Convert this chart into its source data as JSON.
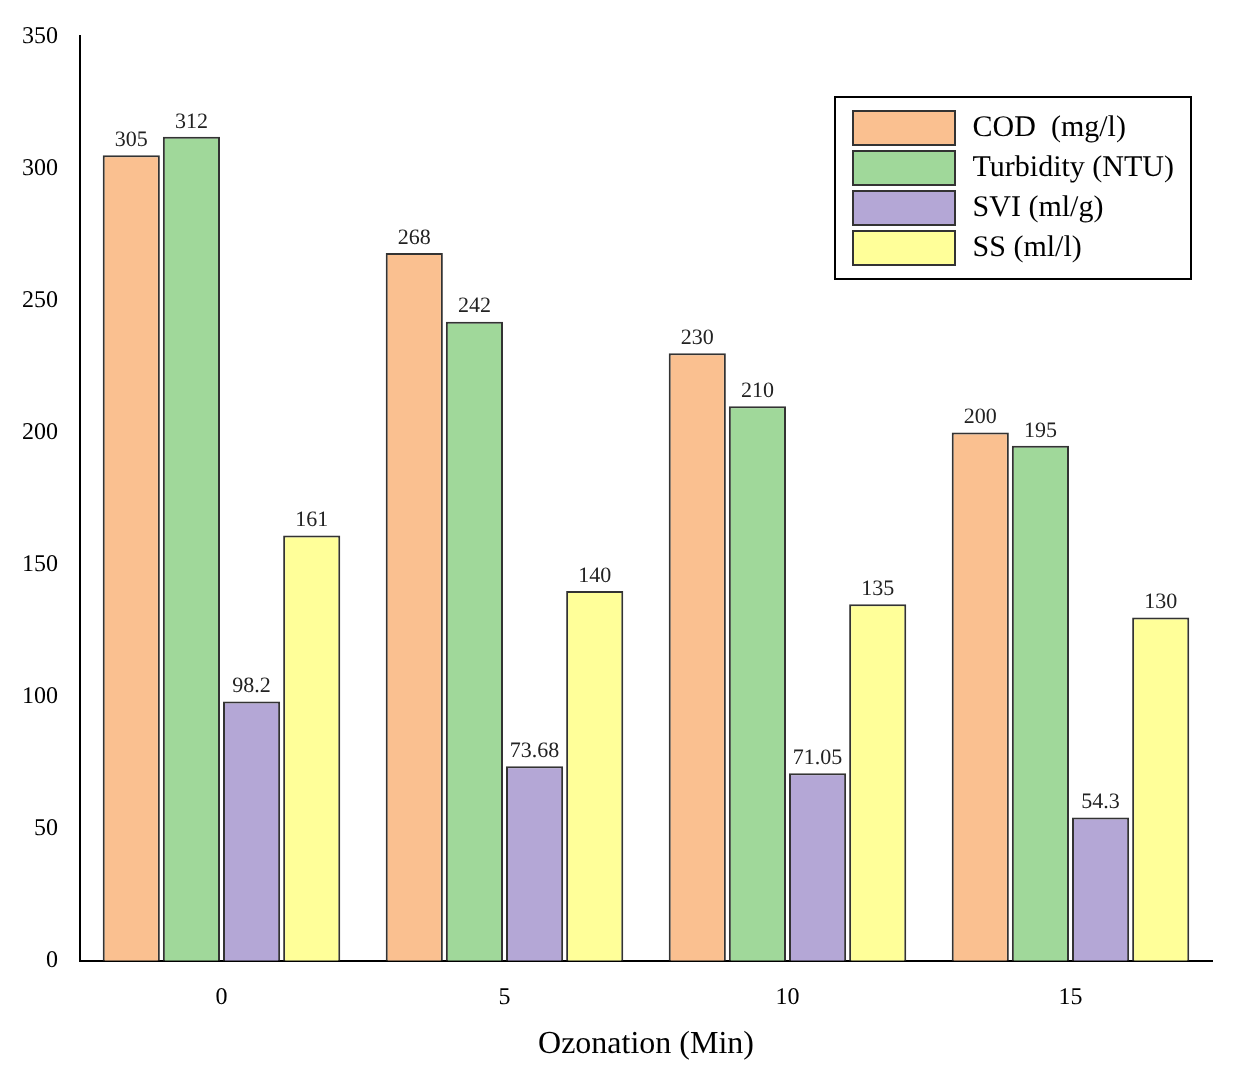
{
  "chart_data": {
    "type": "bar",
    "xlabel": "Ozonation (Min)",
    "categories": [
      "0",
      "5",
      "10",
      "15"
    ],
    "series": [
      {
        "name": "COD  (mg/l)",
        "color": "#fac090",
        "values": [
          305,
          268,
          230,
          200
        ]
      },
      {
        "name": "Turbidity (NTU)",
        "color": "#a0d89a",
        "values": [
          312,
          242,
          210,
          195
        ]
      },
      {
        "name": "SVI (ml/g)",
        "color": "#b4a7d6",
        "values": [
          98.2,
          73.68,
          71.05,
          54.3
        ]
      },
      {
        "name": "SS (ml/l)",
        "color": "#ffff99",
        "values": [
          161,
          140,
          135,
          130
        ]
      }
    ],
    "ylim": [
      0,
      350
    ],
    "yticks": [
      0,
      50,
      100,
      150,
      200,
      250,
      300,
      350
    ],
    "grid": false,
    "legend": "top right",
    "data_labels": true
  }
}
